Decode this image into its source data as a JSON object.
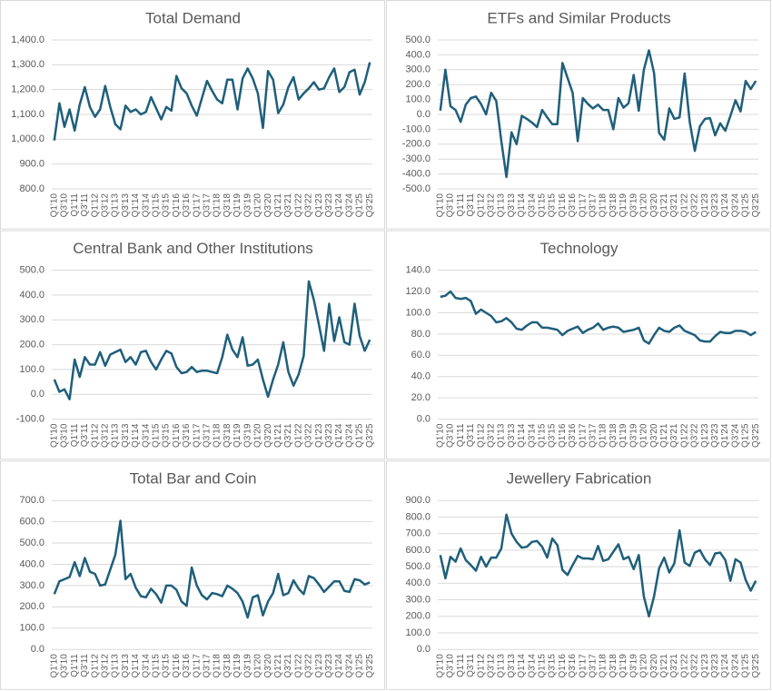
{
  "chart_data": [
    {
      "type": "line",
      "title": "Total Demand",
      "color": "#1f5f7b",
      "grid": true,
      "categories": [
        "Q1'10",
        null,
        "Q3'10",
        null,
        "Q1'11",
        null,
        "Q3'11",
        null,
        "Q1'12",
        null,
        "Q3'12",
        null,
        "Q1'13",
        null,
        "Q3'13",
        null,
        "Q1'14",
        null,
        "Q3'14",
        null,
        "Q1'15",
        null,
        "Q3'15",
        null,
        "Q1'16",
        null,
        "Q3'16",
        null,
        "Q1'17",
        null,
        "Q3'17",
        null,
        "Q1'18",
        null,
        "Q3'18",
        null,
        "Q1'19",
        null,
        "Q3'19",
        null,
        "Q1'20",
        null,
        "Q3'20",
        null,
        "Q1'21",
        null,
        "Q3'21",
        null,
        "Q1'22",
        null,
        "Q3'22",
        null,
        "Q1'23",
        null,
        "Q3'23",
        null,
        "Q1'24",
        null,
        "Q3'24",
        null,
        "Q1'25",
        null,
        "Q3'25"
      ],
      "values": [
        995,
        1145,
        1050,
        1120,
        1035,
        1140,
        1210,
        1130,
        1090,
        1120,
        1215,
        1130,
        1060,
        1040,
        1135,
        1110,
        1120,
        1100,
        1110,
        1170,
        1125,
        1080,
        1130,
        1115,
        1255,
        1205,
        1185,
        1135,
        1095,
        1165,
        1235,
        1195,
        1160,
        1145,
        1240,
        1240,
        1120,
        1245,
        1285,
        1245,
        1185,
        1045,
        1275,
        1240,
        1105,
        1140,
        1210,
        1250,
        1160,
        1185,
        1205,
        1230,
        1200,
        1205,
        1250,
        1285,
        1190,
        1210,
        1270,
        1280,
        1180,
        1230,
        1310
      ],
      "ylim": [
        800,
        1400
      ],
      "yticks": [
        {
          "value": 800,
          "label": "800.0"
        },
        {
          "value": 900,
          "label": "900.0"
        },
        {
          "value": 1000,
          "label": "1,000.0"
        },
        {
          "value": 1100,
          "label": "1,100.0"
        },
        {
          "value": 1200,
          "label": "1,200.0"
        },
        {
          "value": 1300,
          "label": "1,300.0"
        },
        {
          "value": 1400,
          "label": "1,400.0"
        }
      ]
    },
    {
      "type": "line",
      "title": "ETFs and Similar Products",
      "color": "#1f5f7b",
      "grid": true,
      "categories": [
        "Q1'10",
        null,
        "Q3'10",
        null,
        "Q1'11",
        null,
        "Q3'11",
        null,
        "Q1'12",
        null,
        "Q3'12",
        null,
        "Q1'13",
        null,
        "Q3'13",
        null,
        "Q1'14",
        null,
        "Q3'14",
        null,
        "Q1'15",
        null,
        "Q3'15",
        null,
        "Q1'16",
        null,
        "Q3'16",
        null,
        "Q1'17",
        null,
        "Q3'17",
        null,
        "Q1'18",
        null,
        "Q3'18",
        null,
        "Q1'19",
        null,
        "Q3'19",
        null,
        "Q1'20",
        null,
        "Q3'20",
        null,
        "Q1'21",
        null,
        "Q3'21",
        null,
        "Q1'22",
        null,
        "Q3'22",
        null,
        "Q1'23",
        null,
        "Q3'23",
        null,
        "Q1'24",
        null,
        "Q3'24",
        null,
        "Q1'25",
        null,
        "Q3'25"
      ],
      "values": [
        25,
        300,
        55,
        30,
        -50,
        65,
        110,
        120,
        70,
        0,
        145,
        90,
        -180,
        -420,
        -120,
        -200,
        -10,
        -30,
        -55,
        -85,
        30,
        -20,
        -65,
        -65,
        345,
        245,
        145,
        -180,
        110,
        70,
        40,
        65,
        30,
        30,
        -100,
        110,
        45,
        75,
        265,
        25,
        300,
        430,
        280,
        -125,
        -170,
        40,
        -30,
        -20,
        275,
        -50,
        -245,
        -80,
        -30,
        -25,
        -140,
        -60,
        -110,
        -10,
        95,
        20,
        225,
        170,
        225
      ],
      "ylim": [
        -500,
        500
      ],
      "yticks": [
        {
          "value": -500,
          "label": "-500.0"
        },
        {
          "value": -400,
          "label": "-400.0"
        },
        {
          "value": -300,
          "label": "-300.0"
        },
        {
          "value": -200,
          "label": "-200.0"
        },
        {
          "value": -100,
          "label": "-100.0"
        },
        {
          "value": 0,
          "label": "0.0"
        },
        {
          "value": 100,
          "label": "100.0"
        },
        {
          "value": 200,
          "label": "200.0"
        },
        {
          "value": 300,
          "label": "300.0"
        },
        {
          "value": 400,
          "label": "400.0"
        },
        {
          "value": 500,
          "label": "500.0"
        }
      ]
    },
    {
      "type": "line",
      "title": "Central Bank and Other Institutions",
      "color": "#1f5f7b",
      "grid": true,
      "categories": [
        "Q1'10",
        null,
        "Q3'10",
        null,
        "Q1'11",
        null,
        "Q3'11",
        null,
        "Q1'12",
        null,
        "Q3'12",
        null,
        "Q1'13",
        null,
        "Q3'13",
        null,
        "Q1'14",
        null,
        "Q3'14",
        null,
        "Q1'15",
        null,
        "Q3'15",
        null,
        "Q1'16",
        null,
        "Q3'16",
        null,
        "Q1'17",
        null,
        "Q3'17",
        null,
        "Q1'18",
        null,
        "Q3'18",
        null,
        "Q1'19",
        null,
        "Q3'19",
        null,
        "Q1'20",
        null,
        "Q3'20",
        null,
        "Q1'21",
        null,
        "Q3'21",
        null,
        "Q1'22",
        null,
        "Q3'22",
        null,
        "Q1'23",
        null,
        "Q3'23",
        null,
        "Q1'24",
        null,
        "Q3'24",
        null,
        "Q1'25",
        null,
        "Q3'25"
      ],
      "values": [
        60,
        10,
        20,
        -20,
        140,
        70,
        150,
        120,
        120,
        170,
        115,
        160,
        170,
        180,
        130,
        150,
        120,
        170,
        175,
        130,
        100,
        140,
        175,
        165,
        110,
        85,
        90,
        110,
        90,
        95,
        95,
        90,
        85,
        150,
        240,
        180,
        150,
        230,
        115,
        120,
        140,
        60,
        -10,
        60,
        120,
        210,
        90,
        35,
        80,
        155,
        455,
        380,
        280,
        175,
        365,
        215,
        310,
        210,
        200,
        365,
        235,
        175,
        220
      ],
      "ylim": [
        -100,
        500
      ],
      "yticks": [
        {
          "value": -100,
          "label": "-100.0"
        },
        {
          "value": 0,
          "label": "0.0"
        },
        {
          "value": 100,
          "label": "100.0"
        },
        {
          "value": 200,
          "label": "200.0"
        },
        {
          "value": 300,
          "label": "300.0"
        },
        {
          "value": 400,
          "label": "400.0"
        },
        {
          "value": 500,
          "label": "500.0"
        }
      ]
    },
    {
      "type": "line",
      "title": "Technology",
      "color": "#1f5f7b",
      "grid": true,
      "categories": [
        "Q1'10",
        null,
        "Q3'10",
        null,
        "Q1'11",
        null,
        "Q3'11",
        null,
        "Q1'12",
        null,
        "Q3'12",
        null,
        "Q1'13",
        null,
        "Q3'13",
        null,
        "Q1'14",
        null,
        "Q3'14",
        null,
        "Q1'15",
        null,
        "Q3'15",
        null,
        "Q1'16",
        null,
        "Q3'16",
        null,
        "Q1'17",
        null,
        "Q3'17",
        null,
        "Q1'18",
        null,
        "Q3'18",
        null,
        "Q1'19",
        null,
        "Q3'19",
        null,
        "Q1'20",
        null,
        "Q3'20",
        null,
        "Q1'21",
        null,
        "Q3'21",
        null,
        "Q1'22",
        null,
        "Q3'22",
        null,
        "Q1'23",
        null,
        "Q3'23",
        null,
        "Q1'24",
        null,
        "Q3'24",
        null,
        "Q1'25",
        null,
        "Q3'25"
      ],
      "values": [
        115,
        116,
        120,
        114,
        113,
        114,
        111,
        99,
        103,
        100,
        97,
        91,
        92,
        95,
        91,
        85,
        84,
        88,
        91,
        91,
        86,
        86,
        85,
        84,
        79,
        83,
        85,
        87,
        81,
        84,
        86,
        90,
        84,
        86,
        87,
        86,
        82,
        83,
        84,
        86,
        74,
        71,
        79,
        86,
        83,
        82,
        86,
        88,
        83,
        81,
        79,
        74,
        73,
        73,
        78,
        82,
        81,
        81,
        83,
        83,
        82,
        79,
        82
      ],
      "ylim": [
        0,
        140
      ],
      "yticks": [
        {
          "value": 0,
          "label": "0.0"
        },
        {
          "value": 20,
          "label": "20.0"
        },
        {
          "value": 40,
          "label": "40.0"
        },
        {
          "value": 60,
          "label": "60.0"
        },
        {
          "value": 80,
          "label": "80.0"
        },
        {
          "value": 100,
          "label": "100.0"
        },
        {
          "value": 120,
          "label": "120.0"
        },
        {
          "value": 140,
          "label": "140.0"
        }
      ]
    },
    {
      "type": "line",
      "title": "Total Bar and Coin",
      "color": "#1f5f7b",
      "grid": true,
      "categories": [
        "Q1'10",
        null,
        "Q3'10",
        null,
        "Q1'11",
        null,
        "Q3'11",
        null,
        "Q1'12",
        null,
        "Q3'12",
        null,
        "Q1'13",
        null,
        "Q3'13",
        null,
        "Q1'14",
        null,
        "Q3'14",
        null,
        "Q1'15",
        null,
        "Q3'15",
        null,
        "Q1'16",
        null,
        "Q3'16",
        null,
        "Q1'17",
        null,
        "Q3'17",
        null,
        "Q1'18",
        null,
        "Q3'18",
        null,
        "Q1'19",
        null,
        "Q3'19",
        null,
        "Q1'20",
        null,
        "Q3'20",
        null,
        "Q1'21",
        null,
        "Q3'21",
        null,
        "Q1'22",
        null,
        "Q3'22",
        null,
        "Q1'23",
        null,
        "Q3'23",
        null,
        "Q1'24",
        null,
        "Q3'24",
        null,
        "Q1'25",
        null,
        "Q3'25"
      ],
      "values": [
        260,
        320,
        330,
        340,
        410,
        345,
        430,
        365,
        355,
        300,
        305,
        375,
        445,
        605,
        330,
        355,
        290,
        250,
        245,
        285,
        260,
        220,
        300,
        300,
        280,
        225,
        205,
        385,
        300,
        255,
        235,
        265,
        260,
        250,
        300,
        285,
        265,
        225,
        150,
        245,
        255,
        160,
        225,
        265,
        355,
        255,
        265,
        325,
        285,
        260,
        345,
        335,
        305,
        270,
        295,
        320,
        320,
        275,
        270,
        330,
        325,
        305,
        315
      ],
      "ylim": [
        0,
        700
      ],
      "yticks": [
        {
          "value": 0,
          "label": "0.0"
        },
        {
          "value": 100,
          "label": "100.0"
        },
        {
          "value": 200,
          "label": "200.0"
        },
        {
          "value": 300,
          "label": "300.0"
        },
        {
          "value": 400,
          "label": "400.0"
        },
        {
          "value": 500,
          "label": "500.0"
        },
        {
          "value": 600,
          "label": "600.0"
        },
        {
          "value": 700,
          "label": "700.0"
        }
      ]
    },
    {
      "type": "line",
      "title": "Jewellery Fabrication",
      "color": "#1f5f7b",
      "grid": true,
      "categories": [
        "Q1'10",
        null,
        "Q3'10",
        null,
        "Q1'11",
        null,
        "Q3'11",
        null,
        "Q1'12",
        null,
        "Q3'12",
        null,
        "Q1'13",
        null,
        "Q3'13",
        null,
        "Q1'14",
        null,
        "Q3'14",
        null,
        "Q1'15",
        null,
        "Q3'15",
        null,
        "Q1'16",
        null,
        "Q3'16",
        null,
        "Q1'17",
        null,
        "Q3'17",
        null,
        "Q1'18",
        null,
        "Q3'18",
        null,
        "Q1'19",
        null,
        "Q3'19",
        null,
        "Q1'20",
        null,
        "Q3'20",
        null,
        "Q1'21",
        null,
        "Q3'21",
        null,
        "Q1'22",
        null,
        "Q3'22",
        null,
        "Q1'23",
        null,
        "Q3'23",
        null,
        "Q1'24",
        null,
        "Q3'24",
        null,
        "Q1'25",
        null,
        "Q3'25"
      ],
      "values": [
        570,
        430,
        560,
        530,
        610,
        540,
        510,
        475,
        560,
        500,
        555,
        555,
        610,
        815,
        700,
        650,
        615,
        620,
        650,
        655,
        620,
        555,
        670,
        630,
        480,
        450,
        510,
        565,
        550,
        550,
        545,
        625,
        535,
        545,
        590,
        635,
        545,
        560,
        485,
        570,
        320,
        200,
        320,
        490,
        555,
        465,
        520,
        720,
        525,
        505,
        585,
        600,
        545,
        510,
        580,
        585,
        540,
        415,
        545,
        525,
        420,
        355,
        415
      ],
      "ylim": [
        0,
        900
      ],
      "yticks": [
        {
          "value": 0,
          "label": "0.0"
        },
        {
          "value": 100,
          "label": "100.0"
        },
        {
          "value": 200,
          "label": "200.0"
        },
        {
          "value": 300,
          "label": "300.0"
        },
        {
          "value": 400,
          "label": "400.0"
        },
        {
          "value": 500,
          "label": "500.0"
        },
        {
          "value": 600,
          "label": "600.0"
        },
        {
          "value": 700,
          "label": "700.0"
        },
        {
          "value": 800,
          "label": "800.0"
        },
        {
          "value": 900,
          "label": "900.0"
        }
      ]
    }
  ]
}
